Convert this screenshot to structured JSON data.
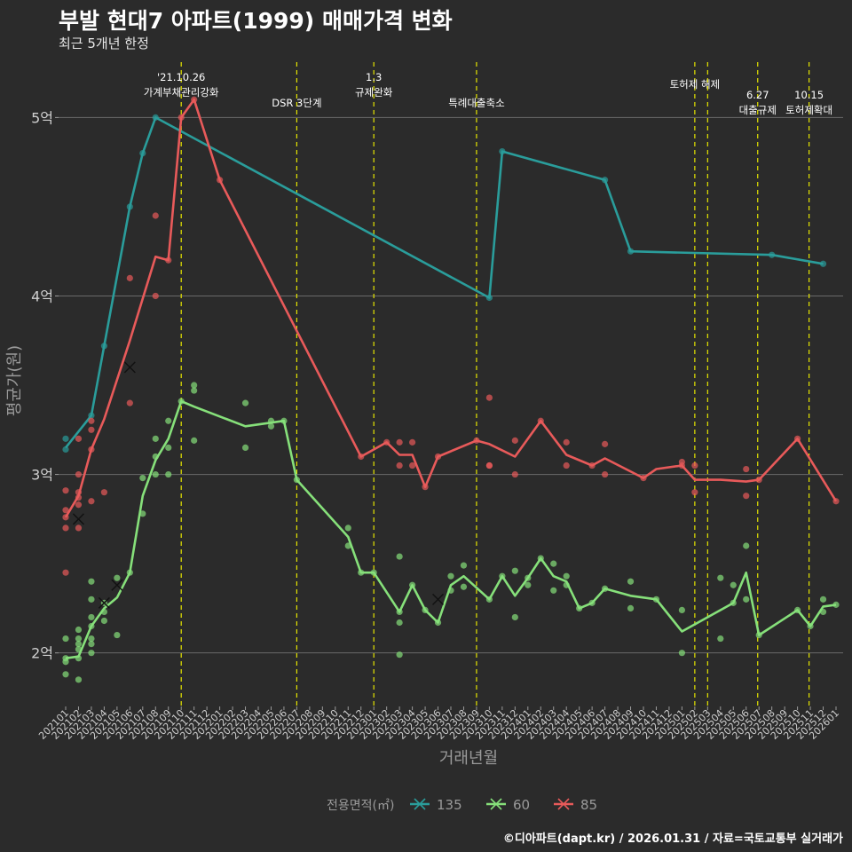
{
  "header": {
    "title": "부발 현대7 아파트(1999) 매매가격 변화",
    "subtitle": "최근 5개년 한정"
  },
  "caption": "©디아파트(dapt.kr) / 2026.01.31 / 자료=국토교통부 실거래가",
  "chart_data": {
    "type": "line",
    "xlabel": "거래년월",
    "ylabel": "평균가(원)",
    "ylim": [
      1.7,
      5.35
    ],
    "y_ticks": [
      {
        "value": 2,
        "label": "2억"
      },
      {
        "value": 3,
        "label": "3억"
      },
      {
        "value": 4,
        "label": "4억"
      },
      {
        "value": 5,
        "label": "5억"
      }
    ],
    "x_ticks": [
      "202101",
      "202102",
      "202103",
      "202104",
      "202105",
      "202106",
      "202107",
      "202108",
      "202109",
      "202110",
      "202111",
      "202112",
      "202201",
      "202202",
      "202203",
      "202204",
      "202205",
      "202206",
      "202207",
      "202208",
      "202209",
      "202210",
      "202211",
      "202212",
      "202301",
      "202302",
      "202303",
      "202304",
      "202305",
      "202306",
      "202307",
      "202308",
      "202309",
      "202310",
      "202311",
      "202312",
      "202401",
      "202402",
      "202403",
      "202404",
      "202405",
      "202406",
      "202407",
      "202408",
      "202409",
      "202410",
      "202411",
      "202412",
      "202501",
      "202502",
      "202503",
      "202504",
      "202505",
      "202506",
      "202507",
      "202508",
      "202509",
      "202510",
      "202511",
      "202512",
      "202601"
    ],
    "legend": {
      "title": "전용면적(㎡)",
      "position": "bottom",
      "entries": [
        {
          "name": "135",
          "color": "#2a9d9b"
        },
        {
          "name": "60",
          "color": "#86e07a"
        },
        {
          "name": "85",
          "color": "#e85a5a"
        }
      ]
    },
    "events": [
      {
        "x": 9.0,
        "lines": [
          "'21.10.26",
          "가계부채관리강화"
        ],
        "level": 0
      },
      {
        "x": 18.0,
        "lines": [
          "DSR 3단계"
        ],
        "level": 2
      },
      {
        "x": 24.0,
        "lines": [
          "1.3",
          "규제완화"
        ],
        "level": 0
      },
      {
        "x": 32.0,
        "lines": [
          "특례대출축소"
        ],
        "level": 2
      },
      {
        "x": 49.0,
        "lines": [
          "토허제 해제"
        ],
        "level": 1
      },
      {
        "x": 50.0,
        "lines": [],
        "level": 0
      },
      {
        "x": 53.9,
        "lines": [
          "6.27",
          "대출규제"
        ],
        "level": 1
      },
      {
        "x": 57.9,
        "lines": [
          "10.15",
          "토허제확대"
        ],
        "level": 1
      }
    ],
    "series": [
      {
        "name": "135",
        "color": "#2a9d9b",
        "line": [
          [
            0,
            3.15
          ],
          [
            2,
            3.33
          ],
          [
            5,
            4.5
          ],
          [
            6,
            4.8
          ],
          [
            7,
            5.0
          ],
          [
            33,
            3.99
          ],
          [
            34,
            4.81
          ],
          [
            42,
            4.65
          ],
          [
            44,
            4.25
          ],
          [
            55,
            4.23
          ],
          [
            59,
            4.18
          ]
        ],
        "points": [
          [
            0,
            3.2
          ],
          [
            0,
            3.14
          ],
          [
            2,
            3.33
          ],
          [
            3,
            3.72
          ],
          [
            5,
            4.5
          ],
          [
            6,
            4.8
          ],
          [
            7,
            5.0
          ],
          [
            33,
            3.99
          ],
          [
            34,
            4.81
          ],
          [
            42,
            4.65
          ],
          [
            44,
            4.25
          ],
          [
            55,
            4.23
          ],
          [
            59,
            4.18
          ]
        ],
        "crosses": []
      },
      {
        "name": "60",
        "color": "#86e07a",
        "line": [
          [
            0,
            1.97
          ],
          [
            1,
            1.98
          ],
          [
            2,
            2.15
          ],
          [
            3,
            2.25
          ],
          [
            4,
            2.31
          ],
          [
            5,
            2.45
          ],
          [
            6,
            2.88
          ],
          [
            7,
            3.08
          ],
          [
            8,
            3.2
          ],
          [
            9,
            3.41
          ],
          [
            10,
            3.38
          ],
          [
            14,
            3.27
          ],
          [
            17,
            3.3
          ],
          [
            18,
            2.97
          ],
          [
            22,
            2.65
          ],
          [
            23,
            2.45
          ],
          [
            24,
            2.45
          ],
          [
            26,
            2.23
          ],
          [
            27,
            2.38
          ],
          [
            28,
            2.24
          ],
          [
            29,
            2.17
          ],
          [
            30,
            2.38
          ],
          [
            31,
            2.43
          ],
          [
            33,
            2.3
          ],
          [
            34,
            2.43
          ],
          [
            35,
            2.32
          ],
          [
            36,
            2.42
          ],
          [
            37,
            2.53
          ],
          [
            38,
            2.43
          ],
          [
            39,
            2.4
          ],
          [
            40,
            2.25
          ],
          [
            41,
            2.28
          ],
          [
            42,
            2.36
          ],
          [
            44,
            2.32
          ],
          [
            46,
            2.3
          ],
          [
            48,
            2.12
          ],
          [
            52,
            2.28
          ],
          [
            53,
            2.45
          ],
          [
            54,
            2.1
          ],
          [
            57,
            2.24
          ],
          [
            58,
            2.15
          ],
          [
            59,
            2.26
          ],
          [
            60,
            2.27
          ]
        ],
        "points": [
          [
            0,
            2.08
          ],
          [
            0,
            1.97
          ],
          [
            0,
            1.95
          ],
          [
            0,
            1.88
          ],
          [
            1,
            2.13
          ],
          [
            1,
            2.08
          ],
          [
            1,
            2.05
          ],
          [
            1,
            2.02
          ],
          [
            1,
            1.97
          ],
          [
            1,
            1.85
          ],
          [
            2,
            2.4
          ],
          [
            2,
            2.3
          ],
          [
            2,
            2.2
          ],
          [
            2,
            2.15
          ],
          [
            2,
            2.08
          ],
          [
            2,
            2.05
          ],
          [
            2,
            2.0
          ],
          [
            3,
            2.28
          ],
          [
            3,
            2.23
          ],
          [
            3,
            2.18
          ],
          [
            4,
            2.42
          ],
          [
            4,
            2.1
          ],
          [
            5,
            2.45
          ],
          [
            6,
            2.98
          ],
          [
            6,
            2.78
          ],
          [
            7,
            3.2
          ],
          [
            7,
            3.1
          ],
          [
            7,
            3.0
          ],
          [
            8,
            3.3
          ],
          [
            8,
            3.15
          ],
          [
            8,
            3.0
          ],
          [
            9,
            3.41
          ],
          [
            10,
            3.5
          ],
          [
            10,
            3.47
          ],
          [
            10,
            3.19
          ],
          [
            14,
            3.4
          ],
          [
            14,
            3.15
          ],
          [
            16,
            3.3
          ],
          [
            16,
            3.27
          ],
          [
            17,
            3.3
          ],
          [
            18,
            2.97
          ],
          [
            22,
            2.7
          ],
          [
            22,
            2.6
          ],
          [
            23,
            2.45
          ],
          [
            24,
            2.45
          ],
          [
            26,
            2.54
          ],
          [
            26,
            2.23
          ],
          [
            26,
            2.17
          ],
          [
            26,
            1.99
          ],
          [
            27,
            2.38
          ],
          [
            28,
            2.24
          ],
          [
            29,
            2.17
          ],
          [
            30,
            2.43
          ],
          [
            30,
            2.35
          ],
          [
            31,
            2.49
          ],
          [
            31,
            2.37
          ],
          [
            33,
            2.3
          ],
          [
            34,
            2.43
          ],
          [
            35,
            2.46
          ],
          [
            35,
            2.2
          ],
          [
            36,
            2.42
          ],
          [
            36,
            2.38
          ],
          [
            37,
            2.53
          ],
          [
            38,
            2.5
          ],
          [
            38,
            2.35
          ],
          [
            39,
            2.43
          ],
          [
            39,
            2.38
          ],
          [
            40,
            2.25
          ],
          [
            41,
            2.28
          ],
          [
            42,
            2.36
          ],
          [
            44,
            2.4
          ],
          [
            44,
            2.25
          ],
          [
            46,
            2.3
          ],
          [
            48,
            2.24
          ],
          [
            48,
            2.0
          ],
          [
            51,
            2.42
          ],
          [
            51,
            2.08
          ],
          [
            52,
            2.38
          ],
          [
            52,
            2.28
          ],
          [
            53,
            2.6
          ],
          [
            53,
            2.3
          ],
          [
            54,
            2.1
          ],
          [
            57,
            2.24
          ],
          [
            58,
            2.15
          ],
          [
            59,
            2.3
          ],
          [
            59,
            2.23
          ],
          [
            60,
            2.27
          ]
        ],
        "crosses": [
          [
            3,
            2.28
          ],
          [
            4,
            2.38
          ],
          [
            29,
            2.3
          ]
        ]
      },
      {
        "name": "85",
        "color": "#e85a5a",
        "line": [
          [
            0,
            2.76
          ],
          [
            1,
            2.88
          ],
          [
            2,
            3.14
          ],
          [
            3,
            3.31
          ],
          [
            5,
            3.75
          ],
          [
            7,
            4.22
          ],
          [
            8,
            4.2
          ],
          [
            9,
            5.0
          ],
          [
            10,
            5.1
          ],
          [
            12,
            4.65
          ],
          [
            23,
            3.1
          ],
          [
            25,
            3.18
          ],
          [
            26,
            3.11
          ],
          [
            27,
            3.11
          ],
          [
            28,
            2.93
          ],
          [
            29,
            3.1
          ],
          [
            32,
            3.19
          ],
          [
            33,
            3.17
          ],
          [
            35,
            3.1
          ],
          [
            37,
            3.3
          ],
          [
            39,
            3.11
          ],
          [
            41,
            3.05
          ],
          [
            42,
            3.09
          ],
          [
            45,
            2.98
          ],
          [
            46,
            3.03
          ],
          [
            48,
            3.05
          ],
          [
            49,
            2.97
          ],
          [
            51,
            2.97
          ],
          [
            53,
            2.96
          ],
          [
            54,
            2.97
          ],
          [
            57,
            3.2
          ],
          [
            60,
            2.85
          ]
        ],
        "points": [
          [
            0,
            2.91
          ],
          [
            0,
            2.8
          ],
          [
            0,
            2.76
          ],
          [
            0,
            2.7
          ],
          [
            0,
            2.45
          ],
          [
            1,
            3.2
          ],
          [
            1,
            3.0
          ],
          [
            1,
            2.9
          ],
          [
            1,
            2.87
          ],
          [
            1,
            2.83
          ],
          [
            1,
            2.7
          ],
          [
            2,
            3.3
          ],
          [
            2,
            3.25
          ],
          [
            2,
            3.14
          ],
          [
            2,
            2.85
          ],
          [
            3,
            2.9
          ],
          [
            5,
            4.1
          ],
          [
            5,
            3.4
          ],
          [
            7,
            4.45
          ],
          [
            7,
            4.0
          ],
          [
            8,
            4.2
          ],
          [
            9,
            5.0
          ],
          [
            10,
            5.1
          ],
          [
            12,
            4.65
          ],
          [
            23,
            3.1
          ],
          [
            25,
            3.18
          ],
          [
            26,
            3.18
          ],
          [
            26,
            3.05
          ],
          [
            27,
            3.18
          ],
          [
            27,
            3.05
          ],
          [
            28,
            2.93
          ],
          [
            29,
            3.1
          ],
          [
            32,
            3.19
          ],
          [
            33,
            3.43
          ],
          [
            33,
            3.05
          ],
          [
            33,
            3.05
          ],
          [
            35,
            3.19
          ],
          [
            35,
            3.0
          ],
          [
            37,
            3.3
          ],
          [
            39,
            3.18
          ],
          [
            39,
            3.05
          ],
          [
            41,
            3.05
          ],
          [
            42,
            3.17
          ],
          [
            42,
            3.0
          ],
          [
            45,
            2.98
          ],
          [
            48,
            3.07
          ],
          [
            48,
            3.05
          ],
          [
            49,
            3.05
          ],
          [
            49,
            2.9
          ],
          [
            53,
            3.03
          ],
          [
            53,
            2.88
          ],
          [
            54,
            2.97
          ],
          [
            57,
            3.2
          ],
          [
            60,
            2.85
          ]
        ],
        "crosses": [
          [
            1,
            2.75
          ],
          [
            5,
            3.6
          ]
        ]
      }
    ]
  }
}
